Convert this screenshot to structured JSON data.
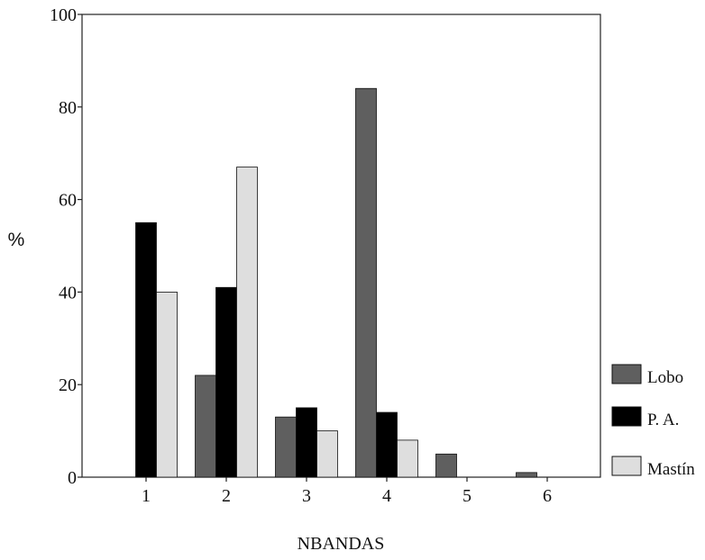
{
  "chart_data": {
    "type": "bar",
    "title": "",
    "xlabel": "NBANDAS",
    "ylabel": "%",
    "categories": [
      "1",
      "2",
      "3",
      "4",
      "5",
      "6"
    ],
    "y_ticks": [
      "0",
      "20",
      "40",
      "60",
      "80",
      "100"
    ],
    "ylim": [
      0,
      100
    ],
    "grid": false,
    "legend_position": "right",
    "series": [
      {
        "name": "Lobo",
        "color": "#5f5f5f",
        "values": [
          0,
          22,
          13,
          84,
          5,
          1
        ]
      },
      {
        "name": "P. A.",
        "color": "#000000",
        "values": [
          55,
          41,
          15,
          14,
          0,
          0
        ]
      },
      {
        "name": "Mastín",
        "color": "#dedede",
        "values": [
          40,
          67,
          10,
          8,
          0,
          0
        ]
      }
    ]
  }
}
